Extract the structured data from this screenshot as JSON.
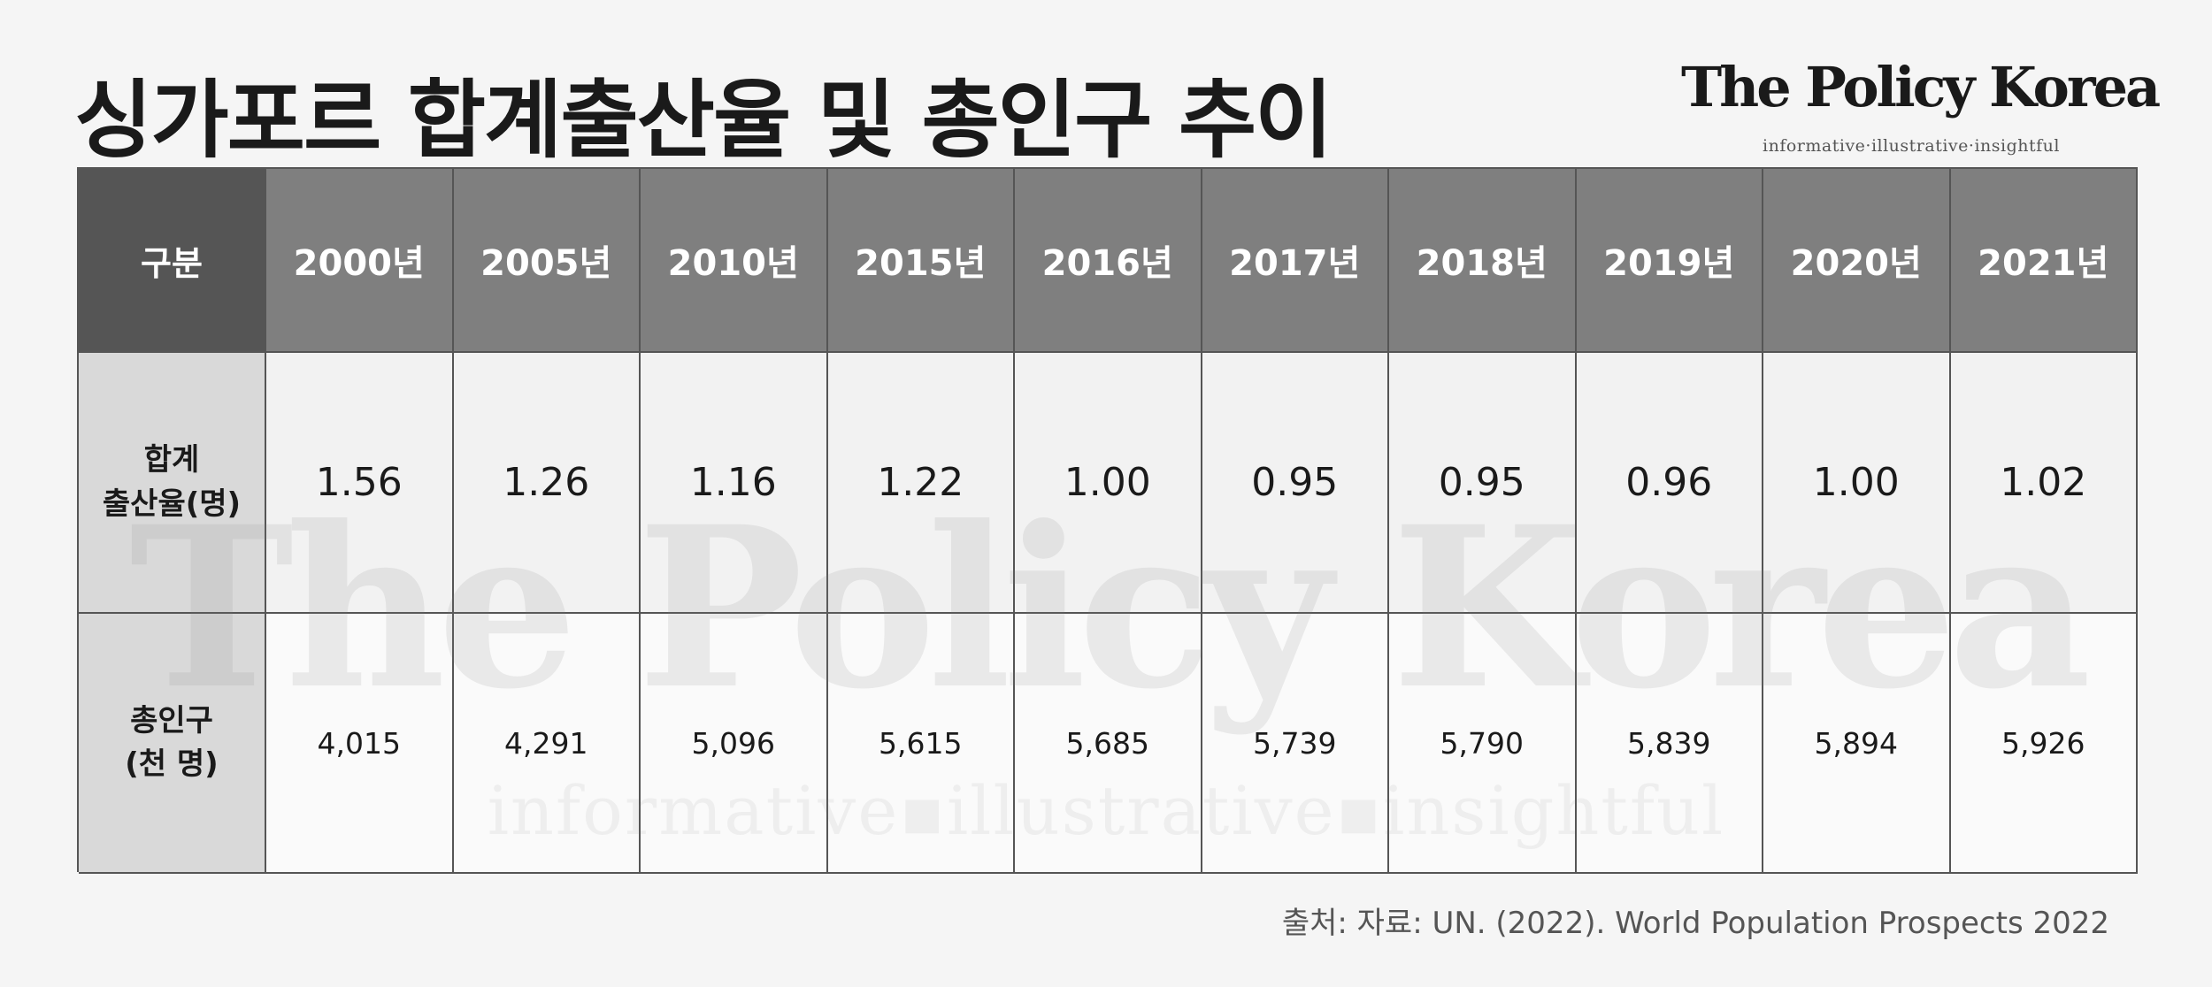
{
  "title": "싱가포르 합계출산율 및 총인구 추이",
  "brand": {
    "logo": "The Policy Korea",
    "tagline": "informative·illustrative·insightful"
  },
  "table": {
    "corner": "구분",
    "years": [
      "2000년",
      "2005년",
      "2010년",
      "2015년",
      "2016년",
      "2017년",
      "2018년",
      "2019년",
      "2020년",
      "2021년"
    ],
    "rows": [
      {
        "label": "합계\n출산율(명)",
        "values": [
          "1.56",
          "1.26",
          "1.16",
          "1.22",
          "1.00",
          "0.95",
          "0.95",
          "0.96",
          "1.00",
          "1.02"
        ]
      },
      {
        "label": "총인구\n(천 명)",
        "values": [
          "4,015",
          "4,291",
          "5,096",
          "5,615",
          "5,685",
          "5,739",
          "5,790",
          "5,839",
          "5,894",
          "5,926"
        ]
      }
    ]
  },
  "watermark": {
    "logo": "The Policy Korea",
    "tagline": "informative▪illustrative▪insightful"
  },
  "source": "출처: 자료: UN. (2022). World Population Prospects 2022",
  "colors": {
    "background": "#f5f5f5",
    "corner_header": "#555555",
    "year_header": "#7f7f7f",
    "row_label": "#d9d9d9",
    "grid_line": "#555555"
  }
}
